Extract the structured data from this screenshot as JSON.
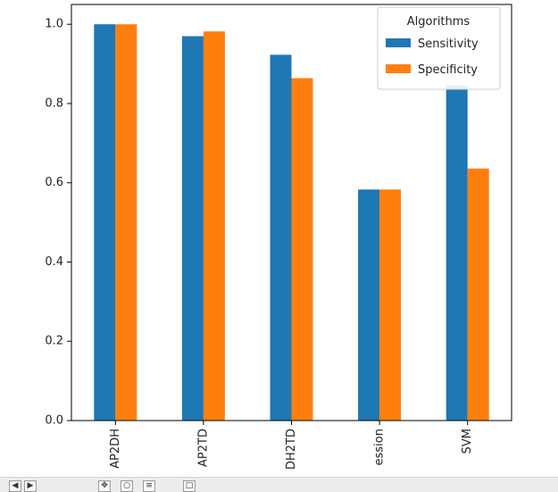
{
  "chart_data": {
    "type": "bar",
    "categories": [
      "AP2DH",
      "AP2TD",
      "DH2TD",
      "ession",
      "SVM"
    ],
    "series": [
      {
        "name": "Sensitivity",
        "color": "#1f77b4",
        "values": [
          1.0,
          0.97,
          0.923,
          0.583,
          0.846
        ]
      },
      {
        "name": "Specificity",
        "color": "#ff7f0e",
        "values": [
          1.0,
          0.982,
          0.864,
          0.583,
          0.636
        ]
      }
    ],
    "ylim": [
      0,
      1.05
    ],
    "yticks": [
      "0.0",
      "0.2",
      "0.4",
      "0.6",
      "0.8",
      "1.0"
    ],
    "ytick_values": [
      0,
      0.2,
      0.4,
      0.6,
      0.8,
      1.0
    ],
    "legend": {
      "title": "Algorithms",
      "placement": "top-right"
    },
    "grid": false
  },
  "toolbar": {
    "buttons": [
      "back-icon",
      "forward-icon",
      "pan-icon",
      "zoom-icon",
      "configure-icon",
      "save-icon"
    ]
  }
}
